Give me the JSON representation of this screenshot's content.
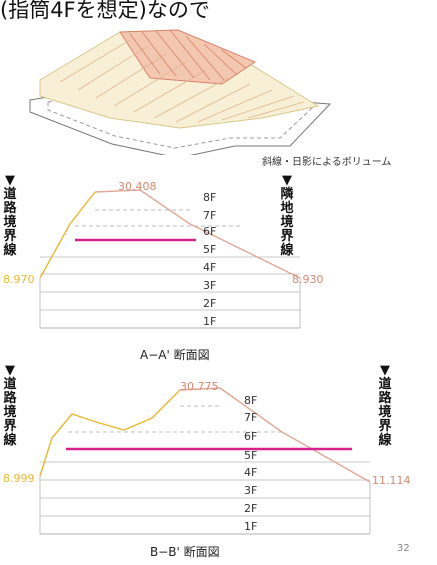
{
  "header_text": "(指筒4Fを想定)なので",
  "volume_caption": "斜線・日影によるボリューム",
  "section_a": {
    "title": "A−A' 断面図",
    "left_boundary": "▼道路境界線",
    "right_boundary": "▼隣地境界線",
    "left_height": "8.970",
    "right_height": "8.930",
    "peak_height": "30.408",
    "floors": [
      "8F",
      "7F",
      "6F",
      "5F",
      "4F",
      "3F",
      "2F",
      "1F"
    ]
  },
  "section_b": {
    "title": "B−B' 断面図",
    "left_boundary": "▼道路境界線",
    "right_boundary": "▼道路境界線",
    "left_height": "8.999",
    "right_height": "11.114",
    "peak_height": "30.775",
    "floors": [
      "8F",
      "7F",
      "6F",
      "5F",
      "4F",
      "3F",
      "2F",
      "1F"
    ]
  },
  "page_number": "32",
  "colors": {
    "envelope_line": "#e0a898",
    "yellow_line": "#e8b830",
    "magenta_line": "#d8208a",
    "dashed_line": "#a0a0a0",
    "number_label": "#d88870"
  }
}
